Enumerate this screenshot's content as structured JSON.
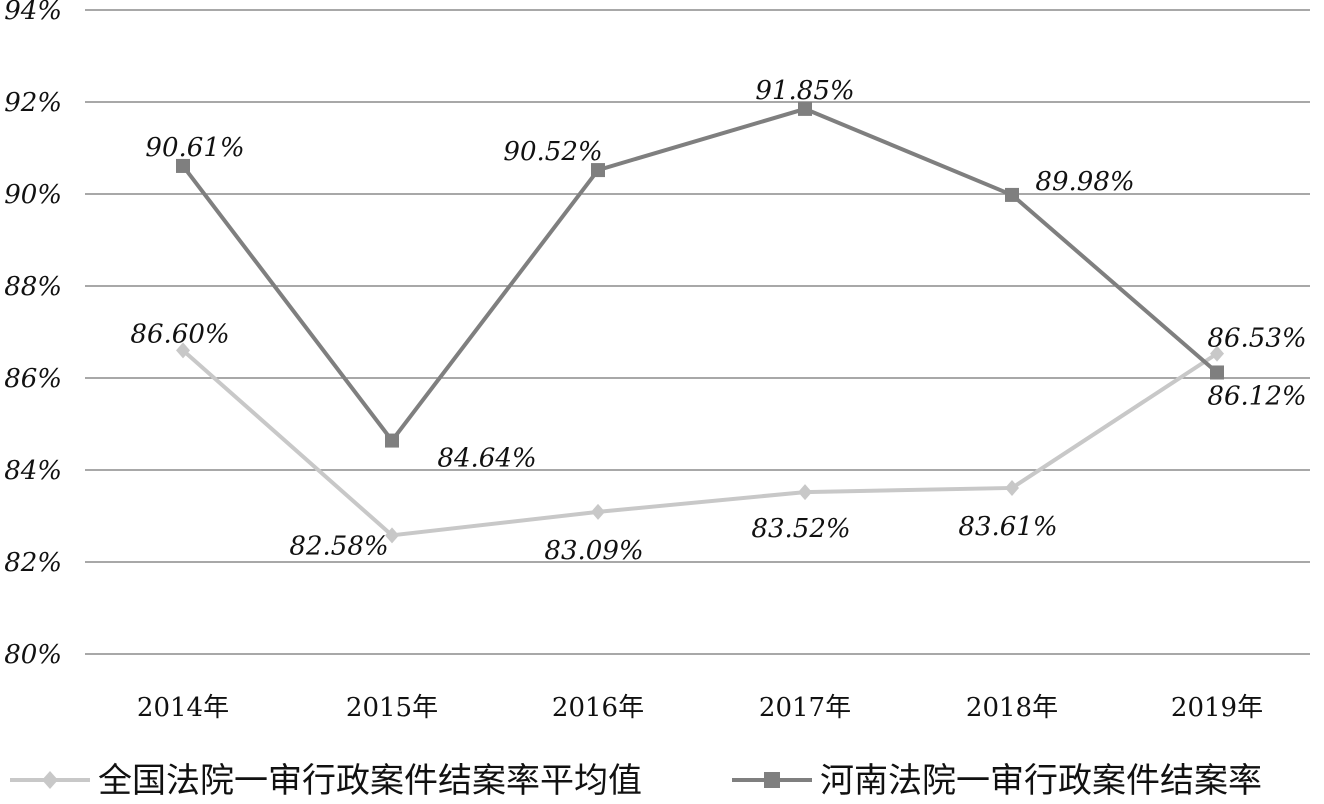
{
  "chart_data": {
    "type": "line",
    "categories": [
      "2014年",
      "2015年",
      "2016年",
      "2017年",
      "2018年",
      "2019年"
    ],
    "ylim": [
      80,
      94
    ],
    "yticks": [
      "80%",
      "82%",
      "84%",
      "86%",
      "88%",
      "90%",
      "92%",
      "94%"
    ],
    "grid": true,
    "legend": "bottom",
    "series": [
      {
        "name": "全国法院一审行政案件结案率平均值",
        "values": [
          86.6,
          82.58,
          83.09,
          83.52,
          83.61,
          86.53
        ],
        "labels": [
          "86.60%",
          "82.58%",
          "83.09%",
          "83.52%",
          "83.61%",
          "86.53%"
        ],
        "color": "#c8c8c8",
        "marker": "diamond"
      },
      {
        "name": "河南法院一审行政案件结案率",
        "values": [
          90.61,
          84.64,
          90.52,
          91.85,
          89.98,
          86.12
        ],
        "labels": [
          "90.61%",
          "84.64%",
          "90.52%",
          "91.85%",
          "89.98%",
          "86.12%"
        ],
        "color": "#7f7f7f",
        "marker": "square"
      }
    ]
  }
}
